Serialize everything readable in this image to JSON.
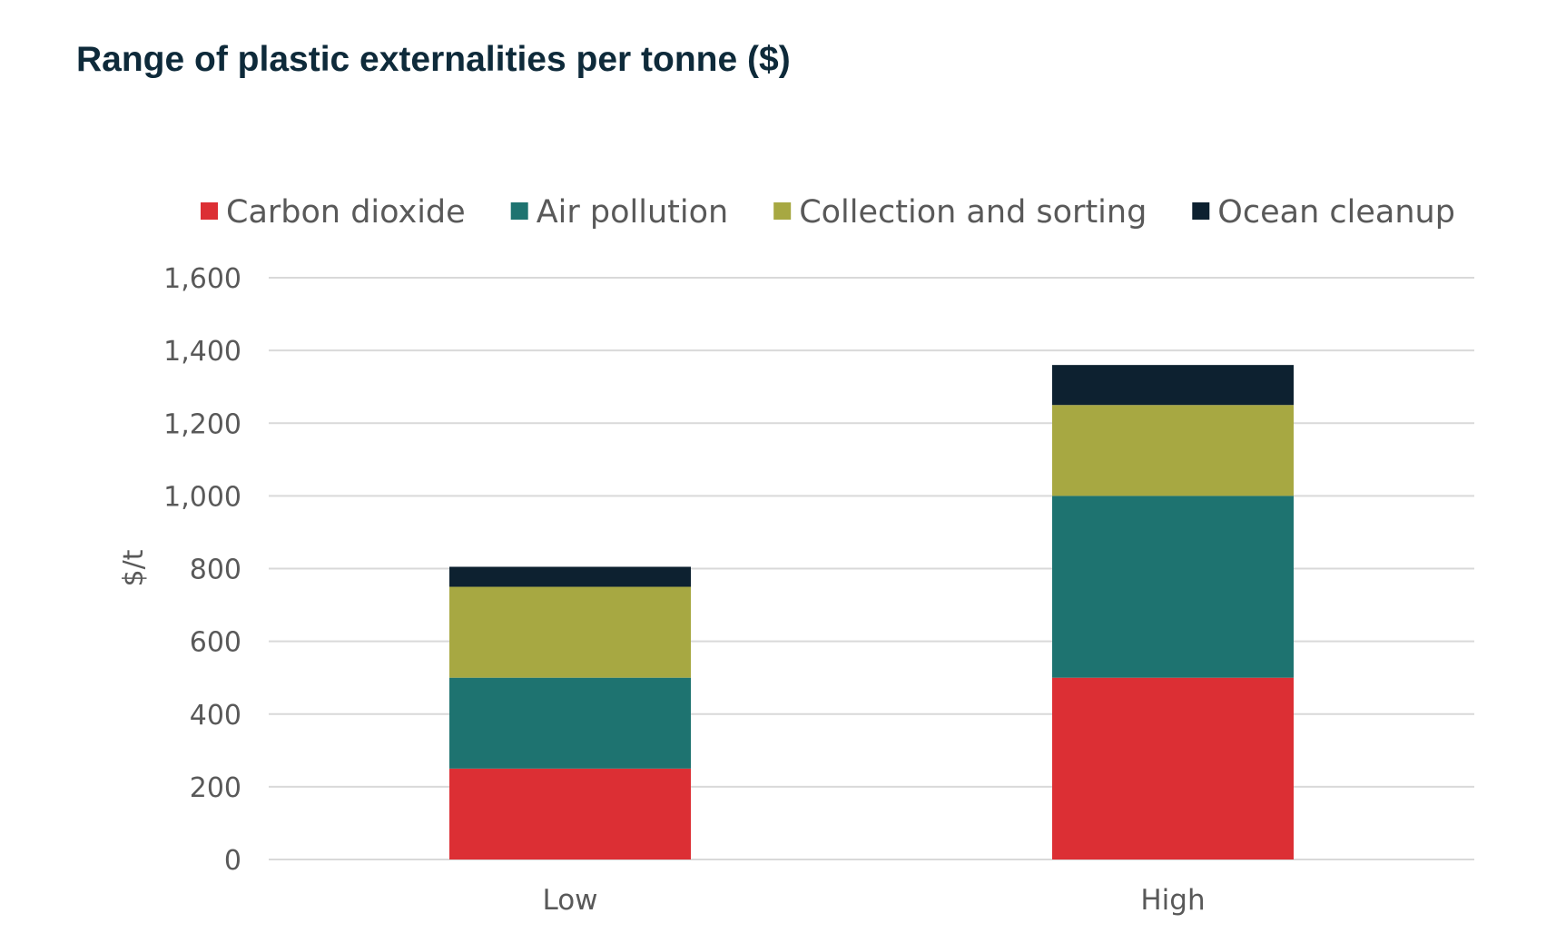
{
  "title": "Range of plastic externalities per tonne ($)",
  "chart_data": {
    "type": "bar",
    "stacked": true,
    "categories": [
      "Low",
      "High"
    ],
    "series": [
      {
        "name": "Carbon dioxide",
        "color": "#dc2f34",
        "values": [
          250,
          500
        ]
      },
      {
        "name": "Air pollution",
        "color": "#1e7370",
        "values": [
          250,
          500
        ]
      },
      {
        "name": "Collection and sorting",
        "color": "#a7a842",
        "values": [
          250,
          250
        ]
      },
      {
        "name": "Ocean cleanup",
        "color": "#0d2130",
        "values": [
          55,
          110
        ]
      }
    ],
    "ylabel": "$/t",
    "ylim": [
      0,
      1600
    ],
    "yticks": [
      0,
      200,
      400,
      600,
      800,
      1000,
      1200,
      1400,
      1600
    ],
    "ytick_labels": [
      "0",
      "200",
      "400",
      "600",
      "800",
      "1,000",
      "1,200",
      "1,400",
      "1,600"
    ],
    "grid": true,
    "legend_position": "top"
  }
}
